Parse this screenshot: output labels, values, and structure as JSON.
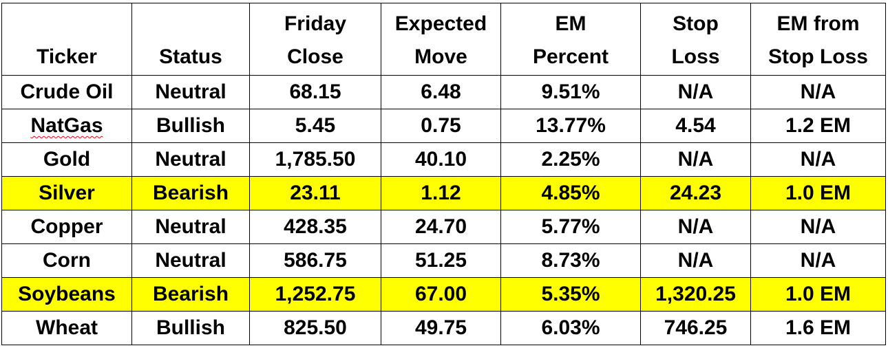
{
  "columns": [
    [
      "",
      "Ticker"
    ],
    [
      "",
      "Status"
    ],
    [
      "Friday",
      "Close"
    ],
    [
      "Expected",
      "Move"
    ],
    [
      "EM",
      "Percent"
    ],
    [
      "Stop",
      "Loss"
    ],
    [
      "EM from",
      "Stop Loss"
    ]
  ],
  "colors": {
    "highlight": "#ffff00",
    "border": "#000000",
    "spellcheck": "#ff0000"
  },
  "rows": [
    {
      "cells": [
        "Crude Oil",
        "Neutral",
        "68.15",
        "6.48",
        "9.51%",
        "N/A",
        "N/A"
      ],
      "highlight": false
    },
    {
      "cells": [
        "NatGas",
        "Bullish",
        "5.45",
        "0.75",
        "13.77%",
        "4.54",
        "1.2 EM"
      ],
      "highlight": false
    },
    {
      "cells": [
        "Gold",
        "Neutral",
        "1,785.50",
        "40.10",
        "2.25%",
        "N/A",
        "N/A"
      ],
      "highlight": false
    },
    {
      "cells": [
        "Silver",
        "Bearish",
        "23.11",
        "1.12",
        "4.85%",
        "24.23",
        "1.0 EM"
      ],
      "highlight": true
    },
    {
      "cells": [
        "Copper",
        "Neutral",
        "428.35",
        "24.70",
        "5.77%",
        "N/A",
        "N/A"
      ],
      "highlight": false
    },
    {
      "cells": [
        "Corn",
        "Neutral",
        "586.75",
        "51.25",
        "8.73%",
        "N/A",
        "N/A"
      ],
      "highlight": false
    },
    {
      "cells": [
        "Soybeans",
        "Bearish",
        "1,252.75",
        "67.00",
        "5.35%",
        "1,320.25",
        "1.0 EM"
      ],
      "highlight": true
    },
    {
      "cells": [
        "Wheat",
        "Bullish",
        "825.50",
        "49.75",
        "6.03%",
        "746.25",
        "1.6 EM"
      ],
      "highlight": false
    }
  ]
}
